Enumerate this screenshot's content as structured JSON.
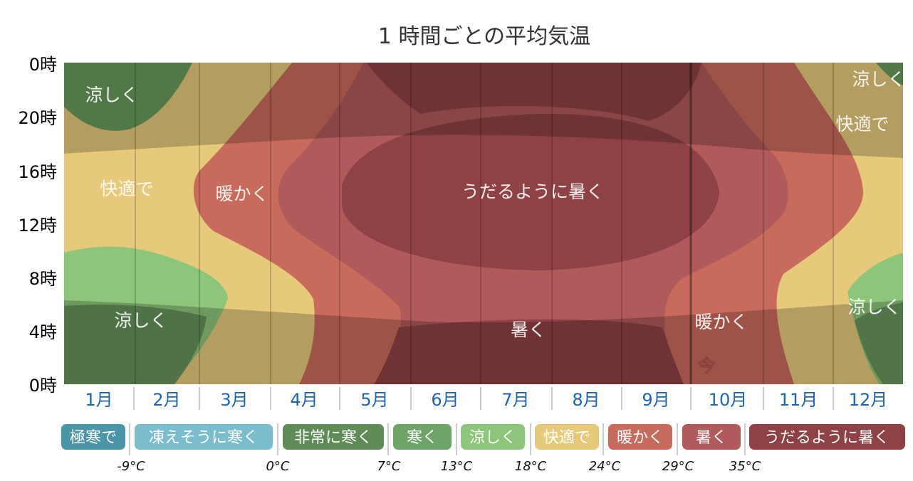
{
  "chart_data": {
    "type": "heatmap",
    "title": "1 時間ごとの平均気温",
    "y_axis": {
      "labels": [
        "0時",
        "20時",
        "16時",
        "12時",
        "8時",
        "4時",
        "0時"
      ],
      "range": [
        0,
        24
      ],
      "values": [
        24,
        20,
        16,
        12,
        8,
        4,
        0
      ]
    },
    "x_axis": {
      "categories": [
        "1月",
        "2月",
        "3月",
        "4月",
        "5月",
        "6月",
        "7月",
        "8月",
        "9月",
        "10月",
        "11月",
        "12月"
      ]
    },
    "color_bands": [
      {
        "label": "極寒で",
        "color": "#4b95a9"
      },
      {
        "label": "凍えそうに寒く",
        "color": "#7bbccd"
      },
      {
        "label": "非常に寒く",
        "color": "#5f8b57"
      },
      {
        "label": "寒く",
        "color": "#6fa468"
      },
      {
        "label": "涼しく",
        "color": "#8dc57a"
      },
      {
        "label": "快適で",
        "color": "#e6c97b"
      },
      {
        "label": "暖かく",
        "color": "#c96b5c"
      },
      {
        "label": "暑く",
        "color": "#b15a5c"
      },
      {
        "label": "うだるように暑く",
        "color": "#8f4246"
      }
    ],
    "thresholds": [
      "-9°C",
      "0°C",
      "7°C",
      "13°C",
      "18°C",
      "24°C",
      "29°C",
      "35°C"
    ],
    "region_labels": [
      "涼しく",
      "快適で",
      "暖かく",
      "うだるように暑く",
      "涼しく",
      "暑く",
      "暖かく",
      "涼しく",
      "快適で",
      "涼しく"
    ],
    "now_marker": {
      "label": "今",
      "month_position": 9.5
    },
    "night_shading": true,
    "grid": true
  }
}
